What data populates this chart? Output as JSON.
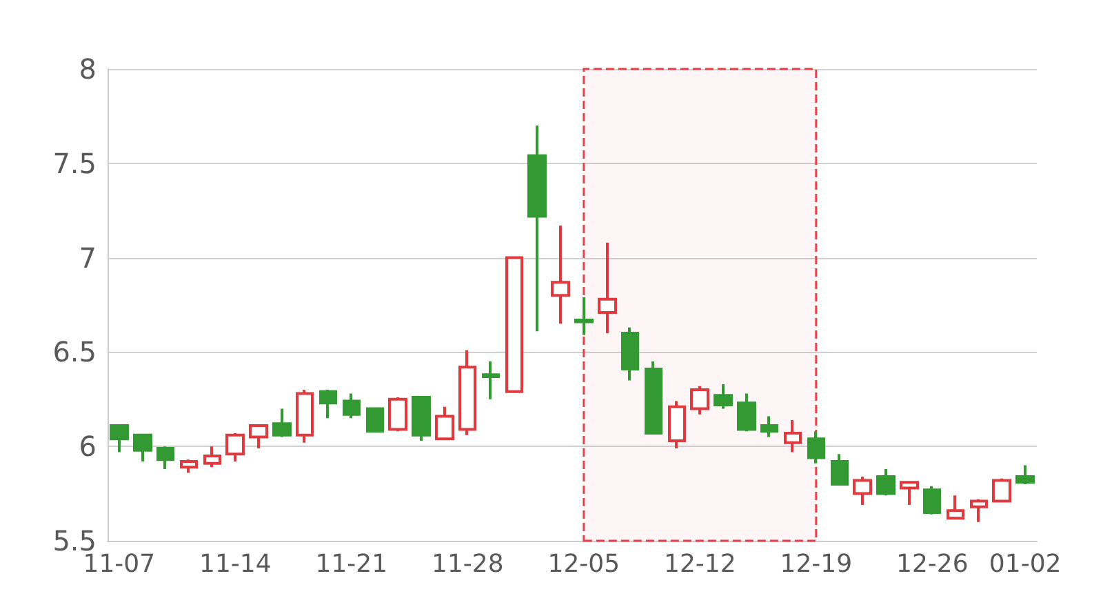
{
  "chart_data": {
    "type": "candlestick",
    "categories": [
      "11-07",
      null,
      null,
      null,
      null,
      "11-14",
      null,
      null,
      null,
      null,
      "11-21",
      null,
      null,
      null,
      null,
      "11-28",
      null,
      null,
      null,
      null,
      "12-05",
      null,
      null,
      null,
      null,
      "12-12",
      null,
      null,
      null,
      null,
      "12-19",
      null,
      null,
      null,
      null,
      "12-26",
      null,
      null,
      null,
      "01-02"
    ],
    "ohlc": [
      [
        6.11,
        6.11,
        5.97,
        6.04
      ],
      [
        6.06,
        6.06,
        5.92,
        5.98
      ],
      [
        5.99,
        6.0,
        5.88,
        5.93
      ],
      [
        5.89,
        5.93,
        5.86,
        5.92
      ],
      [
        5.91,
        6.0,
        5.89,
        5.95
      ],
      [
        5.96,
        6.07,
        5.92,
        6.06
      ],
      [
        6.05,
        6.11,
        5.99,
        6.11
      ],
      [
        6.12,
        6.2,
        6.05,
        6.06
      ],
      [
        6.06,
        6.3,
        6.02,
        6.28
      ],
      [
        6.29,
        6.3,
        6.15,
        6.23
      ],
      [
        6.24,
        6.28,
        6.15,
        6.17
      ],
      [
        6.2,
        6.2,
        6.08,
        6.08
      ],
      [
        6.09,
        6.26,
        6.08,
        6.25
      ],
      [
        6.26,
        6.26,
        6.03,
        6.06
      ],
      [
        6.04,
        6.21,
        6.04,
        6.16
      ],
      [
        6.09,
        6.51,
        6.06,
        6.42
      ],
      [
        6.38,
        6.45,
        6.25,
        6.37
      ],
      [
        6.29,
        7.0,
        6.29,
        7.0
      ],
      [
        7.54,
        7.7,
        6.61,
        7.22
      ],
      [
        6.8,
        7.17,
        6.65,
        6.87
      ],
      [
        6.67,
        6.79,
        6.59,
        6.66
      ],
      [
        6.71,
        7.08,
        6.6,
        6.78
      ],
      [
        6.6,
        6.63,
        6.35,
        6.41
      ],
      [
        6.41,
        6.45,
        6.07,
        6.07
      ],
      [
        6.03,
        6.24,
        5.99,
        6.21
      ],
      [
        6.2,
        6.32,
        6.17,
        6.3
      ],
      [
        6.27,
        6.33,
        6.2,
        6.22
      ],
      [
        6.23,
        6.28,
        6.08,
        6.09
      ],
      [
        6.11,
        6.16,
        6.05,
        6.08
      ],
      [
        6.02,
        6.14,
        5.97,
        6.07
      ],
      [
        6.04,
        6.08,
        5.91,
        5.94
      ],
      [
        5.92,
        5.96,
        5.8,
        5.8
      ],
      [
        5.75,
        5.84,
        5.69,
        5.82
      ],
      [
        5.84,
        5.88,
        5.74,
        5.75
      ],
      [
        5.78,
        5.81,
        5.69,
        5.81
      ],
      [
        5.77,
        5.79,
        5.64,
        5.65
      ],
      [
        5.62,
        5.74,
        5.62,
        5.66
      ],
      [
        5.68,
        5.72,
        5.6,
        5.71
      ],
      [
        5.71,
        5.83,
        5.71,
        5.82
      ],
      [
        5.84,
        5.9,
        5.8,
        5.81
      ]
    ],
    "colors": [
      "#339933",
      "#339933",
      "#339933",
      "#e03a3e",
      "#e03a3e",
      "#e03a3e",
      "#e03a3e",
      "#339933",
      "#e03a3e",
      "#339933",
      "#339933",
      "#339933",
      "#e03a3e",
      "#339933",
      "#e03a3e",
      "#e03a3e",
      "#339933",
      "#e03a3e",
      "#339933",
      "#e03a3e",
      "#339933",
      "#e03a3e",
      "#339933",
      "#339933",
      "#e03a3e",
      "#e03a3e",
      "#339933",
      "#339933",
      "#339933",
      "#e03a3e",
      "#339933",
      "#339933",
      "#e03a3e",
      "#339933",
      "#e03a3e",
      "#339933",
      "#e03a3e",
      "#e03a3e",
      "#e03a3e",
      "#339933"
    ],
    "ylim": [
      5.5,
      8
    ],
    "yticks": [
      5.5,
      6,
      6.5,
      7,
      7.5,
      8
    ],
    "grid": "y",
    "bands": [
      {
        "axis": "x",
        "from": "12-05",
        "to": "12-19",
        "color": "#e8404a"
      }
    ]
  }
}
